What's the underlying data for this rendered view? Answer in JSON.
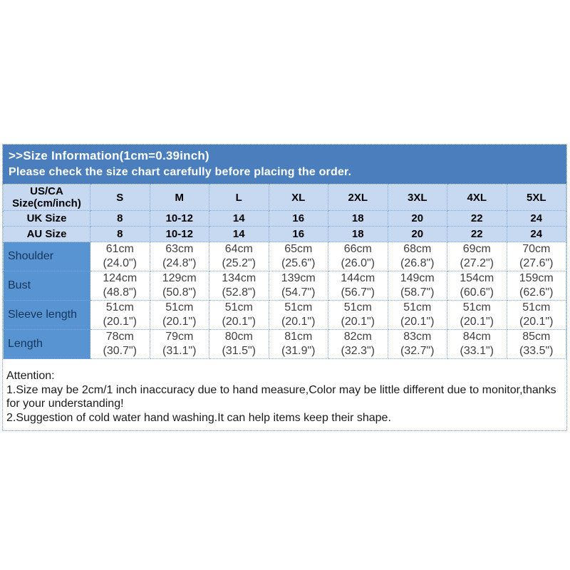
{
  "header": {
    "title": ">>Size Information(1cm=0.39inch)",
    "subtitle": "Please check the size chart carefully before placing the order."
  },
  "table": {
    "corner": {
      "line1": "US/CA",
      "line2": "Size(cm/inch)"
    },
    "sizes": [
      "S",
      "M",
      "L",
      "XL",
      "2XL",
      "3XL",
      "4XL",
      "5XL"
    ],
    "uk": {
      "label": "UK Size",
      "values": [
        "8",
        "10-12",
        "14",
        "16",
        "18",
        "20",
        "22",
        "24"
      ]
    },
    "au": {
      "label": "AU Size",
      "values": [
        "8",
        "10-12",
        "14",
        "16",
        "18",
        "20",
        "22",
        "24"
      ]
    },
    "rows": [
      {
        "label": "Shoulder",
        "cells": [
          {
            "cm": "61cm",
            "in": "(24.0\")"
          },
          {
            "cm": "63cm",
            "in": "(24.8\")"
          },
          {
            "cm": "64cm",
            "in": "(25.2\")"
          },
          {
            "cm": "65cm",
            "in": "(25.6\")"
          },
          {
            "cm": "66cm",
            "in": "(26.0\")"
          },
          {
            "cm": "68cm",
            "in": "(26.8\")"
          },
          {
            "cm": "69cm",
            "in": "(27.2\")"
          },
          {
            "cm": "70cm",
            "in": "(27.6\")"
          }
        ]
      },
      {
        "label": "Bust",
        "cells": [
          {
            "cm": "124cm",
            "in": "(48.8\")"
          },
          {
            "cm": "129cm",
            "in": "(50.8\")"
          },
          {
            "cm": "134cm",
            "in": "(52.8\")"
          },
          {
            "cm": "139cm",
            "in": "(54.7\")"
          },
          {
            "cm": "144cm",
            "in": "(56.7\")"
          },
          {
            "cm": "149cm",
            "in": "(58.7\")"
          },
          {
            "cm": "154cm",
            "in": "(60.6\")"
          },
          {
            "cm": "159cm",
            "in": "(62.6\")"
          }
        ]
      },
      {
        "label": "Sleeve length",
        "cells": [
          {
            "cm": "51cm",
            "in": "(20.1\")"
          },
          {
            "cm": "51cm",
            "in": "(20.1\")"
          },
          {
            "cm": "51cm",
            "in": "(20.1\")"
          },
          {
            "cm": "51cm",
            "in": "(20.1\")"
          },
          {
            "cm": "51cm",
            "in": "(20.1\")"
          },
          {
            "cm": "51cm",
            "in": "(20.1\")"
          },
          {
            "cm": "51cm",
            "in": "(20.1\")"
          },
          {
            "cm": "51cm",
            "in": "(20.1\")"
          }
        ]
      },
      {
        "label": "Length",
        "cells": [
          {
            "cm": "78cm",
            "in": "(30.7\")"
          },
          {
            "cm": "79cm",
            "in": "(31.1\")"
          },
          {
            "cm": "80cm",
            "in": "(31.5\")"
          },
          {
            "cm": "81cm",
            "in": "(31.9\")"
          },
          {
            "cm": "82cm",
            "in": "(32.3\")"
          },
          {
            "cm": "83cm",
            "in": "(32.7\")"
          },
          {
            "cm": "84cm",
            "in": "(33.1\")"
          },
          {
            "cm": "85cm",
            "in": "(33.5\")"
          }
        ]
      }
    ]
  },
  "attention": {
    "heading": "Attention:",
    "lines": [
      "1.Size may be 2cm/1 inch inaccuracy due to hand measure,Color may be little different due to monitor,thanks for your understanding!",
      "2.Suggestion of cold water hand washing.It can help items keep their shape."
    ]
  },
  "colors": {
    "title_bg": "#4a7ebc",
    "header_bg": "#c6d9f1",
    "label_bg": "#5794d1",
    "border": "#7da7d8",
    "border_dark": "#6d93bf"
  }
}
